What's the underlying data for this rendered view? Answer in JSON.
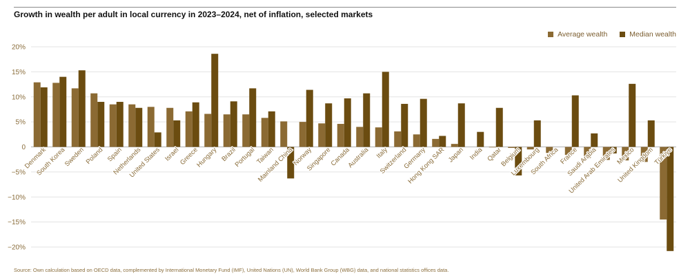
{
  "title": "Growth in wealth per adult in local currency in 2023–2024, net of inflation, selected markets",
  "source": "Source: Own calculation based on OECD data, complemented by International Monetary Fund (IMF), United Nations (UN), World Bank Group (WBG) data, and national statistics offices data.",
  "colors": {
    "average": "#8b6a33",
    "median": "#6b4c10",
    "grid": "#e3e3e3",
    "tick_text": "#8a6d3b"
  },
  "chart_data": {
    "type": "bar",
    "ylim": [
      -20,
      20
    ],
    "yticks": [
      20,
      15,
      10,
      5,
      0,
      -5,
      -10,
      -15,
      -20
    ],
    "ytick_labels": [
      "20%",
      "15%",
      "10%",
      "5%",
      "0",
      "−5%",
      "−10%",
      "−15%",
      "−20%"
    ],
    "legend_position": "top-right",
    "grid": true,
    "categories": [
      "Denmark",
      "South Korea",
      "Sweden",
      "Poland",
      "Spain",
      "Netherlands",
      "United States",
      "Israel",
      "Greece",
      "Hungary",
      "Brazil",
      "Portugal",
      "Taiwan",
      "Mainland China",
      "Norway",
      "Singapore",
      "Canada",
      "Australia",
      "Italy",
      "Switzerland",
      "Germany",
      "Hong Kong SAR",
      "Japan",
      "India",
      "Qatar",
      "Belgium",
      "Luxembourg",
      "South Africa",
      "France",
      "Saudi Arabia",
      "United Arab Emirates",
      "Mexico",
      "United Kingdom",
      "Türkiye"
    ],
    "series": [
      {
        "name": "Average wealth",
        "values": [
          12.9,
          12.8,
          11.7,
          10.7,
          8.5,
          8.5,
          8.0,
          7.8,
          7.1,
          6.6,
          6.5,
          6.5,
          5.8,
          5.1,
          5.0,
          4.7,
          4.6,
          4.0,
          3.9,
          3.1,
          2.5,
          1.6,
          0.6,
          0.0,
          -0.1,
          -0.2,
          -0.5,
          -1.2,
          -1.6,
          -2.2,
          -2.6,
          -2.7,
          -3.0,
          -14.5
        ]
      },
      {
        "name": "Median wealth",
        "values": [
          11.9,
          14.0,
          15.3,
          9.0,
          9.0,
          7.8,
          2.9,
          5.3,
          8.9,
          18.6,
          9.1,
          11.7,
          7.1,
          -6.3,
          11.4,
          8.7,
          9.7,
          10.7,
          15.0,
          8.6,
          9.6,
          2.2,
          8.7,
          3.0,
          7.8,
          -5.7,
          5.3,
          0.0,
          10.3,
          2.7,
          -1.3,
          12.6,
          5.3,
          -20.8
        ]
      }
    ]
  }
}
